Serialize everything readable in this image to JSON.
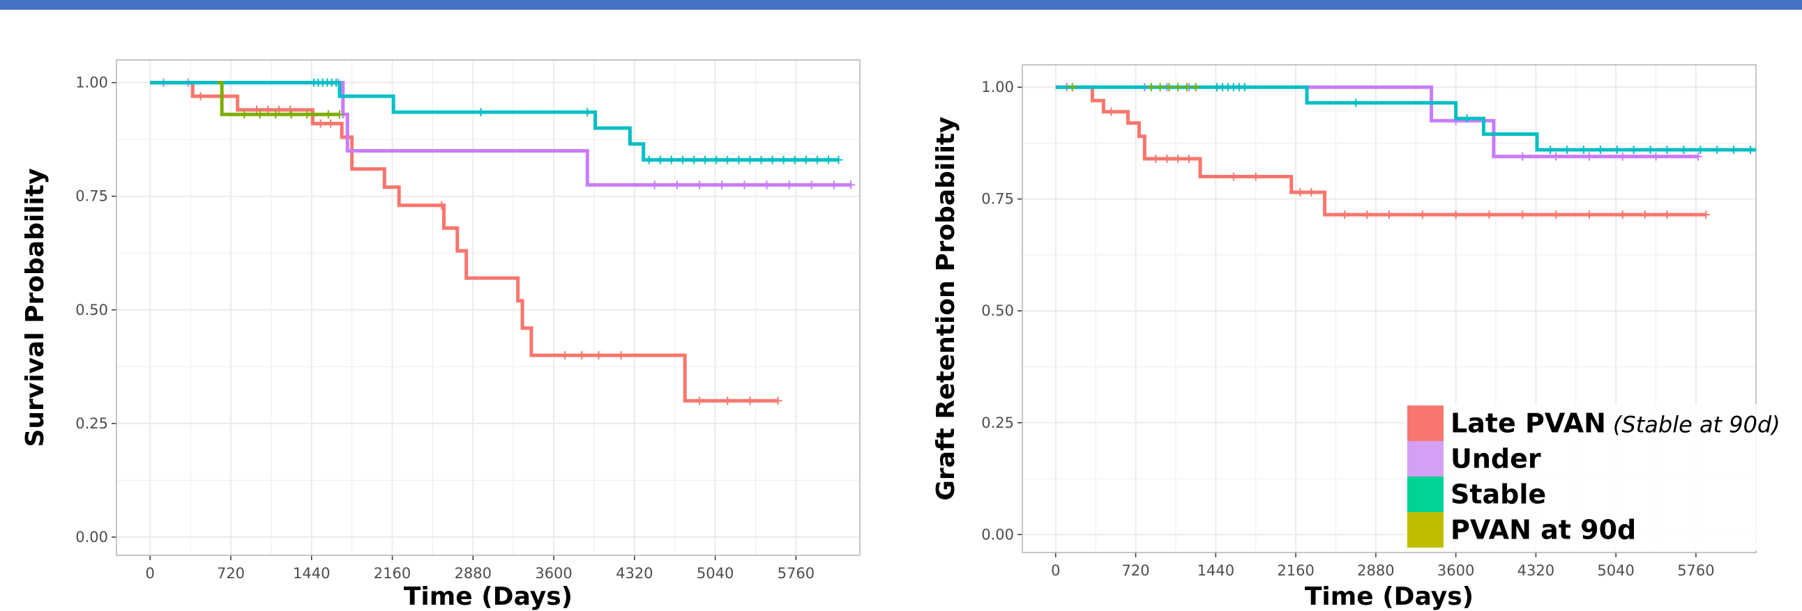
{
  "colors": {
    "late_pvan": "#f8766d",
    "under": "#c77cff",
    "stable": "#00bfc4",
    "pvan90": "#7cae00",
    "panel_border": "#b3b3b3",
    "grid": "#ebebeb",
    "topbar": "#4472c4"
  },
  "legend": {
    "items": [
      {
        "label": "Late PVAN",
        "note": "(Stable at 90d)",
        "color": "#f8766d"
      },
      {
        "label": "Under",
        "note": "",
        "color": "#d49ff5"
      },
      {
        "label": "Stable",
        "note": "",
        "color": "#00d394"
      },
      {
        "label": "PVAN at 90d",
        "note": "",
        "color": "#c0bd00"
      }
    ]
  },
  "chart_data": [
    {
      "type": "line",
      "step": true,
      "xlabel": "Time (Days)",
      "ylabel": "Survival Probability",
      "xticks": [
        0,
        720,
        1440,
        2160,
        2880,
        3600,
        4320,
        5040,
        5760
      ],
      "xtick_labels": [
        "0",
        "720",
        "1440",
        "2160",
        "2880",
        "3600",
        "4320",
        "5040",
        "5760"
      ],
      "yticks": [
        0,
        0.25,
        0.5,
        0.75,
        1.0
      ],
      "ytick_labels": [
        "0.00",
        "0.25",
        "0.50",
        "0.75",
        "1.00"
      ],
      "xlim": [
        -300,
        6330
      ],
      "ylim": [
        -0.04,
        1.05
      ],
      "grid": true,
      "series": [
        {
          "key": "late_pvan",
          "x": [
            0,
            380,
            780,
            830,
            1450,
            1710,
            1800,
            2090,
            2220,
            2620,
            2740,
            2820,
            3280,
            3320,
            3400,
            4770,
            5600
          ],
          "y": [
            1.0,
            0.97,
            0.94,
            0.94,
            0.91,
            0.88,
            0.81,
            0.77,
            0.73,
            0.68,
            0.63,
            0.57,
            0.52,
            0.46,
            0.4,
            0.3,
            0.3
          ],
          "censor_x": [
            120,
            450,
            650,
            950,
            1050,
            1150,
            1250,
            1520,
            1610,
            1750,
            2600,
            3700,
            3850,
            4000,
            4200,
            4900,
            5150,
            5350,
            5600
          ],
          "censor_y": [
            1.0,
            0.97,
            0.97,
            0.94,
            0.94,
            0.94,
            0.94,
            0.91,
            0.91,
            0.88,
            0.73,
            0.4,
            0.4,
            0.4,
            0.4,
            0.3,
            0.3,
            0.3,
            0.3
          ]
        },
        {
          "key": "under",
          "x": [
            0,
            1720,
            1760,
            3900,
            6250
          ],
          "y": [
            1.0,
            0.93,
            0.85,
            0.775,
            0.775
          ],
          "censor_x": [
            120,
            340,
            1680,
            1720,
            4500,
            4700,
            4900,
            5100,
            5300,
            5500,
            5700,
            5900,
            6100,
            6250
          ],
          "censor_y": [
            1.0,
            1.0,
            1.0,
            0.93,
            0.775,
            0.775,
            0.775,
            0.775,
            0.775,
            0.775,
            0.775,
            0.775,
            0.775,
            0.775
          ]
        },
        {
          "key": "stable",
          "x": [
            0,
            1690,
            2170,
            3970,
            4280,
            4400,
            6140
          ],
          "y": [
            1.0,
            0.97,
            0.935,
            0.9,
            0.865,
            0.83,
            0.83
          ],
          "censor_x": [
            1460,
            1500,
            1540,
            1580,
            1620,
            1660,
            2950,
            3900,
            4450,
            4550,
            4650,
            4750,
            4850,
            4950,
            5050,
            5150,
            5250,
            5350,
            5450,
            5550,
            5650,
            5750,
            5850,
            5950,
            6050,
            6140
          ],
          "censor_y": [
            1.0,
            1.0,
            1.0,
            1.0,
            1.0,
            1.0,
            0.935,
            0.935,
            0.83,
            0.83,
            0.83,
            0.83,
            0.83,
            0.83,
            0.83,
            0.83,
            0.83,
            0.83,
            0.83,
            0.83,
            0.83,
            0.83,
            0.83,
            0.83,
            0.83,
            0.83
          ]
        },
        {
          "key": "pvan90",
          "x": [
            600,
            640,
            640,
            1690
          ],
          "y": [
            1.0,
            1.0,
            0.93,
            0.93
          ],
          "censor_x": [
            840,
            980,
            1120,
            1260,
            1400,
            1590,
            1690
          ],
          "censor_y": [
            0.93,
            0.93,
            0.93,
            0.93,
            0.93,
            0.93,
            0.93
          ]
        }
      ]
    },
    {
      "type": "line",
      "step": true,
      "xlabel": "Time (Days)",
      "ylabel": "Graft Retention Probability",
      "xticks": [
        0,
        720,
        1440,
        2160,
        2880,
        3600,
        4320,
        5040,
        5760
      ],
      "xtick_labels": [
        "0",
        "720",
        "1440",
        "2160",
        "2880",
        "3600",
        "4320",
        "5040",
        "5760"
      ],
      "yticks": [
        0,
        0.25,
        0.5,
        0.75,
        1.0
      ],
      "ytick_labels": [
        "0.00",
        "0.25",
        "0.50",
        "0.75",
        "1.00"
      ],
      "xlim": [
        -300,
        6300
      ],
      "ylim": [
        -0.04,
        1.05
      ],
      "grid": true,
      "series": [
        {
          "key": "late_pvan",
          "x": [
            0,
            330,
            430,
            650,
            750,
            800,
            1300,
            2120,
            2420,
            5850
          ],
          "y": [
            1.0,
            0.97,
            0.945,
            0.92,
            0.89,
            0.84,
            0.8,
            0.765,
            0.715,
            0.715
          ],
          "censor_x": [
            100,
            500,
            900,
            1000,
            1100,
            1200,
            1600,
            1800,
            2200,
            2300,
            2600,
            2800,
            3000,
            3300,
            3600,
            3900,
            4200,
            4500,
            4800,
            5100,
            5300,
            5500,
            5850
          ],
          "censor_y": [
            1.0,
            0.945,
            0.84,
            0.84,
            0.84,
            0.84,
            0.8,
            0.8,
            0.765,
            0.765,
            0.715,
            0.715,
            0.715,
            0.715,
            0.715,
            0.715,
            0.715,
            0.715,
            0.715,
            0.715,
            0.715,
            0.715,
            0.715
          ]
        },
        {
          "key": "under",
          "x": [
            0,
            3380,
            3940,
            5780
          ],
          "y": [
            1.0,
            0.925,
            0.845,
            0.845
          ],
          "censor_x": [
            800,
            1000,
            1200,
            3600,
            4200,
            4500,
            4800,
            5100,
            5400,
            5780
          ],
          "censor_y": [
            1.0,
            1.0,
            1.0,
            0.925,
            0.845,
            0.845,
            0.845,
            0.845,
            0.845,
            0.845
          ]
        },
        {
          "key": "stable",
          "x": [
            0,
            2260,
            3600,
            3850,
            4330,
            6300
          ],
          "y": [
            1.0,
            0.965,
            0.93,
            0.895,
            0.86,
            0.86
          ],
          "censor_x": [
            1450,
            1500,
            1550,
            1600,
            1650,
            1700,
            2700,
            3700,
            4450,
            4600,
            4750,
            4900,
            5050,
            5200,
            5350,
            5500,
            5650,
            5800,
            5950,
            6100,
            6250
          ],
          "censor_y": [
            1.0,
            1.0,
            1.0,
            1.0,
            1.0,
            1.0,
            0.965,
            0.93,
            0.86,
            0.86,
            0.86,
            0.86,
            0.86,
            0.86,
            0.86,
            0.86,
            0.86,
            0.86,
            0.86,
            0.86,
            0.86
          ]
        },
        {
          "key": "pvan90",
          "x": [],
          "y": [],
          "censor_x": [
            150,
            860,
            940,
            1020,
            1100,
            1180,
            1260
          ],
          "censor_y": [
            1.0,
            1.0,
            1.0,
            1.0,
            1.0,
            1.0,
            1.0
          ]
        }
      ]
    }
  ]
}
